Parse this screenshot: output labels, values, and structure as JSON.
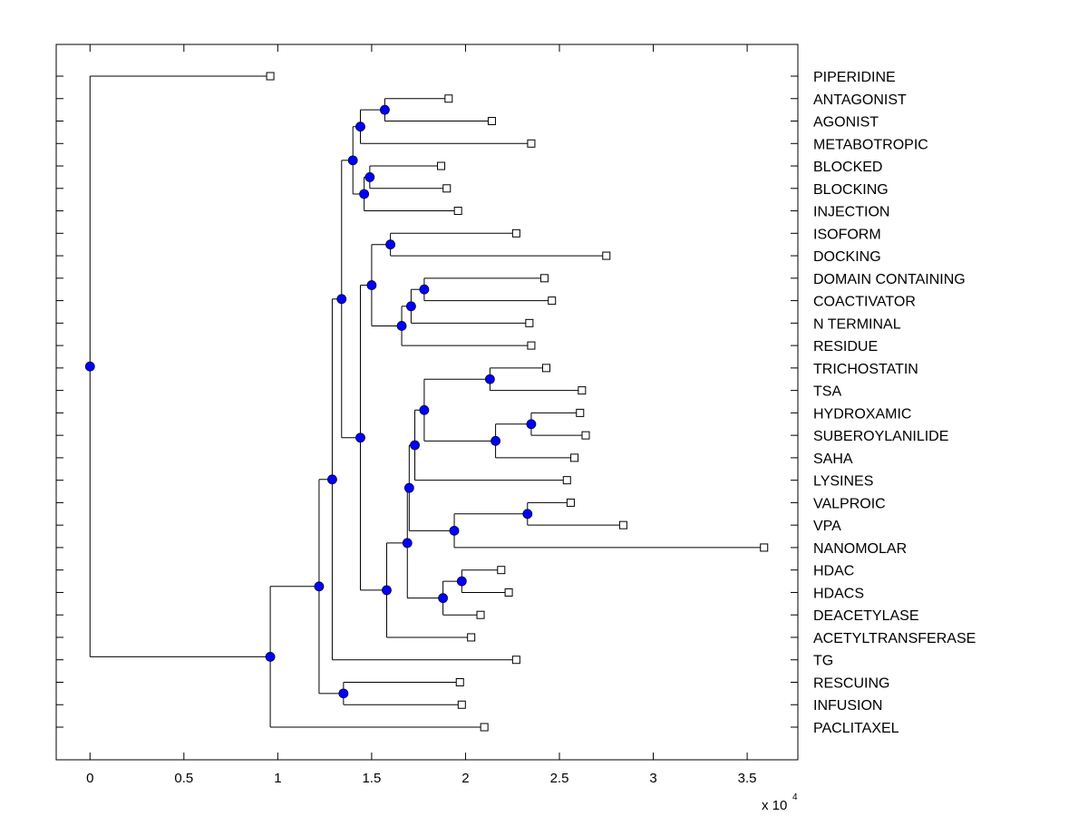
{
  "chart_data": {
    "type": "dendrogram",
    "title": "",
    "xlabel": "",
    "ylabel": "",
    "x_multiplier_label": "x 10",
    "x_multiplier_exponent": "4",
    "xlim": [
      -0.18,
      3.77
    ],
    "xticks": [
      0,
      0.5,
      1,
      1.5,
      2,
      2.5,
      3,
      3.5
    ],
    "xtick_labels": [
      "0",
      "0.5",
      "1",
      "1.5",
      "2",
      "2.5",
      "3",
      "3.5"
    ],
    "grid": false,
    "colors": {
      "internal_node": "#0000ff",
      "leaf_node": "#ffffff",
      "line": "#000000"
    },
    "leaves": [
      {
        "label": "PIPERIDINE",
        "x": 0.96
      },
      {
        "label": "ANTAGONIST",
        "x": 1.91
      },
      {
        "label": "AGONIST",
        "x": 2.14
      },
      {
        "label": "METABOTROPIC",
        "x": 2.35
      },
      {
        "label": "BLOCKED",
        "x": 1.87
      },
      {
        "label": "BLOCKING",
        "x": 1.9
      },
      {
        "label": "INJECTION",
        "x": 1.96
      },
      {
        "label": "ISOFORM",
        "x": 2.27
      },
      {
        "label": "DOCKING",
        "x": 2.75
      },
      {
        "label": "DOMAIN CONTAINING",
        "x": 2.42
      },
      {
        "label": "COACTIVATOR",
        "x": 2.46
      },
      {
        "label": "N TERMINAL",
        "x": 2.34
      },
      {
        "label": "RESIDUE",
        "x": 2.35
      },
      {
        "label": "TRICHOSTATIN",
        "x": 2.43
      },
      {
        "label": "TSA",
        "x": 2.62
      },
      {
        "label": "HYDROXAMIC",
        "x": 2.61
      },
      {
        "label": "SUBEROYLANILIDE",
        "x": 2.64
      },
      {
        "label": "SAHA",
        "x": 2.58
      },
      {
        "label": "LYSINES",
        "x": 2.54
      },
      {
        "label": "VALPROIC",
        "x": 2.56
      },
      {
        "label": "VPA",
        "x": 2.84
      },
      {
        "label": "NANOMOLAR",
        "x": 3.59
      },
      {
        "label": "HDAC",
        "x": 2.19
      },
      {
        "label": "HDACS",
        "x": 2.23
      },
      {
        "label": "DEACETYLASE",
        "x": 2.08
      },
      {
        "label": "ACETYLTRANSFERASE",
        "x": 2.03
      },
      {
        "label": "TG",
        "x": 2.27
      },
      {
        "label": "RESCUING",
        "x": 1.97
      },
      {
        "label": "INFUSION",
        "x": 1.98
      },
      {
        "label": "PACLITAXEL",
        "x": 2.1
      }
    ],
    "internal_nodes": [
      {
        "id": "n_ant_ago",
        "x": 1.57,
        "children": [
          "L1",
          "L2"
        ]
      },
      {
        "id": "n_metab",
        "x": 1.44,
        "children": [
          "n_ant_ago",
          "L3"
        ]
      },
      {
        "id": "n_blk",
        "x": 1.49,
        "children": [
          "L4",
          "L5"
        ]
      },
      {
        "id": "n_inj",
        "x": 1.46,
        "children": [
          "n_blk",
          "L6"
        ]
      },
      {
        "id": "n_upper",
        "x": 1.4,
        "children": [
          "n_metab",
          "n_inj"
        ]
      },
      {
        "id": "n_iso",
        "x": 1.6,
        "children": [
          "L7",
          "L8"
        ]
      },
      {
        "id": "n_dom",
        "x": 1.78,
        "children": [
          "L9",
          "L10"
        ]
      },
      {
        "id": "n_nterm",
        "x": 1.71,
        "children": [
          "n_dom",
          "L11"
        ]
      },
      {
        "id": "n_res",
        "x": 1.66,
        "children": [
          "n_nterm",
          "L12"
        ]
      },
      {
        "id": "n_mid",
        "x": 1.5,
        "children": [
          "n_iso",
          "n_res"
        ]
      },
      {
        "id": "n_trich",
        "x": 2.13,
        "children": [
          "L13",
          "L14"
        ]
      },
      {
        "id": "n_hydro",
        "x": 2.35,
        "children": [
          "L15",
          "L16"
        ]
      },
      {
        "id": "n_saha",
        "x": 2.16,
        "children": [
          "n_hydro",
          "L17"
        ]
      },
      {
        "id": "n_hdac_inh",
        "x": 1.78,
        "children": [
          "n_trich",
          "n_saha"
        ]
      },
      {
        "id": "n_lys",
        "x": 1.73,
        "children": [
          "n_hdac_inh",
          "L18"
        ]
      },
      {
        "id": "n_valp",
        "x": 2.33,
        "children": [
          "L19",
          "L20"
        ]
      },
      {
        "id": "n_nano",
        "x": 1.94,
        "children": [
          "n_valp",
          "L21"
        ]
      },
      {
        "id": "n_lys_nano",
        "x": 1.7,
        "children": [
          "n_lys",
          "n_nano"
        ]
      },
      {
        "id": "n_hdacs",
        "x": 1.98,
        "children": [
          "L22",
          "L23"
        ]
      },
      {
        "id": "n_deac",
        "x": 1.88,
        "children": [
          "n_hdacs",
          "L24"
        ]
      },
      {
        "id": "n_hdac_grp",
        "x": 1.69,
        "children": [
          "n_lys_nano",
          "n_deac"
        ]
      },
      {
        "id": "n_acet",
        "x": 1.58,
        "children": [
          "n_hdac_grp",
          "L25"
        ]
      },
      {
        "id": "n_lower",
        "x": 1.44,
        "children": [
          "n_mid",
          "n_acet"
        ]
      },
      {
        "id": "n_big",
        "x": 1.34,
        "children": [
          "n_upper",
          "n_lower"
        ]
      },
      {
        "id": "n_tg",
        "x": 1.29,
        "children": [
          "n_big",
          "L26"
        ]
      },
      {
        "id": "n_resc",
        "x": 1.35,
        "children": [
          "L27",
          "L28"
        ]
      },
      {
        "id": "n_tg_resc",
        "x": 1.22,
        "children": [
          "n_tg",
          "n_resc"
        ]
      },
      {
        "id": "n_pacl",
        "x": 0.96,
        "children": [
          "n_tg_resc",
          "L29"
        ]
      },
      {
        "id": "n_root",
        "x": 0.0,
        "children": [
          "L0",
          "n_pacl"
        ]
      }
    ]
  }
}
